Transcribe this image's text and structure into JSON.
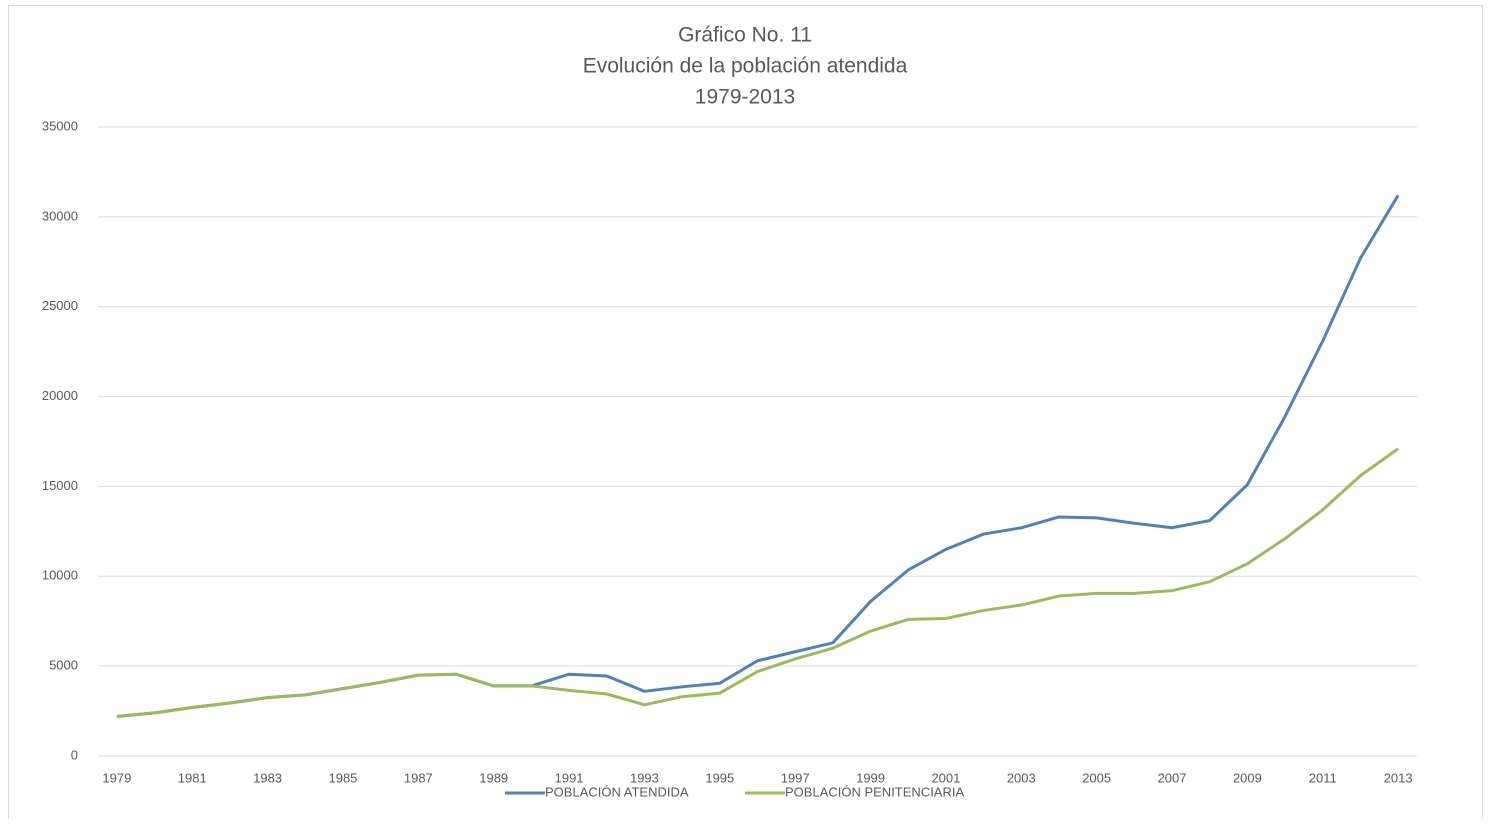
{
  "chart_data": {
    "type": "line",
    "title": [
      "Gráfico No. 11",
      "Evolución de la población atendida",
      "1979-2013"
    ],
    "categories": [
      "1979",
      null,
      "1981",
      null,
      "1983",
      null,
      "1985",
      null,
      "1987",
      null,
      "1989",
      null,
      "1991",
      null,
      "1993",
      null,
      "1995",
      null,
      "1997",
      null,
      "1999",
      null,
      "2001",
      null,
      "2003",
      null,
      "2005",
      null,
      "2007",
      null,
      "2009",
      null,
      "2011",
      null,
      "2013"
    ],
    "series": [
      {
        "name": "POBLACIÓN ATENDIDA",
        "color": "#4f81bd",
        "values": [
          2200,
          2400,
          2700,
          2950,
          3250,
          3400,
          3750,
          4100,
          4500,
          4550,
          3900,
          3900,
          4550,
          4450,
          3600,
          3850,
          4050,
          5300,
          5800,
          6300,
          8600,
          10350,
          11500,
          12350,
          12700,
          13300,
          13250,
          12950,
          12700,
          13100,
          15100,
          18900,
          23100,
          27700,
          31200
        ]
      },
      {
        "name": "POBLACIÓN PENITENCIARIA",
        "color": "#9bbb59",
        "values": [
          2200,
          2400,
          2700,
          2950,
          3250,
          3400,
          3750,
          4100,
          4500,
          4550,
          3900,
          3900,
          3650,
          3450,
          2850,
          3300,
          3500,
          4700,
          5400,
          6000,
          6950,
          7600,
          7650,
          8100,
          8400,
          8900,
          9050,
          9050,
          9200,
          9700,
          10700,
          12100,
          13700,
          15600,
          17100
        ]
      }
    ],
    "ylim": [
      0,
      35000
    ],
    "yticks": [
      0,
      5000,
      10000,
      15000,
      20000,
      25000,
      30000,
      35000
    ],
    "grid": true,
    "legend": "bottom"
  }
}
